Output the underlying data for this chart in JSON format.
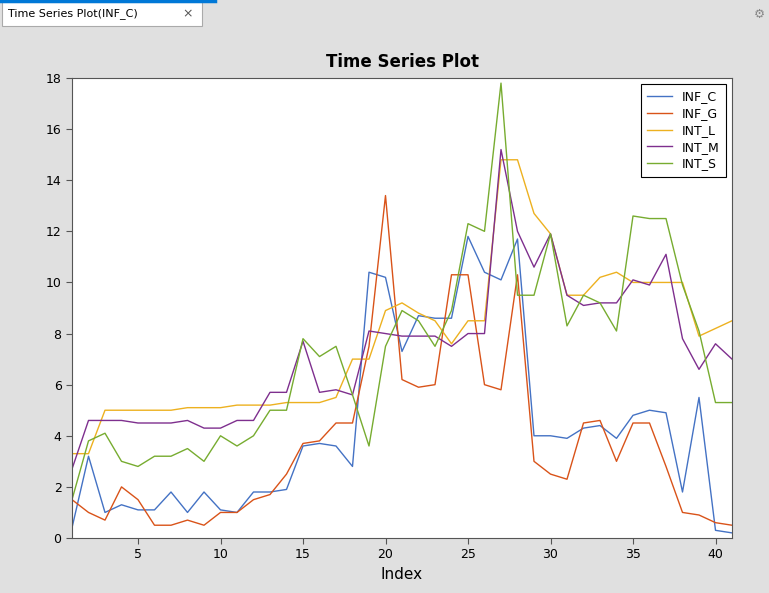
{
  "title": "Time Series Plot",
  "xlabel": "Index",
  "ylabel": "",
  "xlim": [
    1,
    41
  ],
  "ylim": [
    0,
    18
  ],
  "yticks": [
    0,
    2,
    4,
    6,
    8,
    10,
    12,
    14,
    16,
    18
  ],
  "xticks": [
    5,
    10,
    15,
    20,
    25,
    30,
    35,
    40
  ],
  "bg_color": "#e0e0e0",
  "plot_bg": "#ffffff",
  "tab_title": "Time Series Plot(INF_C)",
  "tab_bg": "#ffffff",
  "tab_bar_bg": "#d0d0d0",
  "tab_highlight": "#0078d7",
  "legend_labels": [
    "INF_C",
    "INF_G",
    "INT_L",
    "INT_M",
    "INT_S"
  ],
  "line_colors": [
    "#4472c4",
    "#d95319",
    "#edb120",
    "#7e2f8e",
    "#77ac30"
  ],
  "INF_C": [
    0.4,
    3.2,
    1.0,
    1.3,
    1.1,
    1.1,
    1.8,
    1.0,
    1.8,
    1.1,
    1.0,
    1.8,
    1.8,
    1.9,
    3.6,
    3.7,
    3.6,
    2.8,
    10.4,
    10.2,
    7.3,
    8.7,
    8.6,
    8.6,
    11.8,
    10.4,
    10.1,
    11.7,
    4.0,
    4.0,
    3.9,
    4.3,
    4.4,
    3.9,
    4.8,
    5.0,
    4.9,
    1.8,
    5.5,
    0.3,
    0.2
  ],
  "INF_G": [
    1.5,
    1.0,
    0.7,
    2.0,
    1.5,
    0.5,
    0.5,
    0.7,
    0.5,
    1.0,
    1.0,
    1.5,
    1.7,
    2.5,
    3.7,
    3.8,
    4.5,
    4.5,
    7.5,
    13.4,
    6.2,
    5.9,
    6.0,
    10.3,
    10.3,
    6.0,
    5.8,
    10.3,
    3.0,
    2.5,
    2.3,
    4.5,
    4.6,
    3.0,
    4.5,
    4.5,
    2.8,
    1.0,
    0.9,
    0.6,
    0.5
  ],
  "INT_L": [
    3.3,
    3.3,
    5.0,
    5.0,
    5.0,
    5.0,
    5.0,
    5.1,
    5.1,
    5.1,
    5.2,
    5.2,
    5.2,
    5.3,
    5.3,
    5.3,
    5.5,
    7.0,
    7.0,
    8.9,
    9.2,
    8.8,
    8.5,
    7.6,
    8.5,
    8.5,
    14.8,
    14.8,
    12.7,
    11.9,
    9.5,
    9.5,
    10.2,
    10.4,
    10.0,
    10.0,
    10.0,
    10.0,
    7.9,
    8.2,
    8.5
  ],
  "INT_M": [
    2.7,
    4.6,
    4.6,
    4.6,
    4.5,
    4.5,
    4.5,
    4.6,
    4.3,
    4.3,
    4.6,
    4.6,
    5.7,
    5.7,
    7.7,
    5.7,
    5.8,
    5.6,
    8.1,
    8.0,
    7.9,
    7.9,
    7.9,
    7.5,
    8.0,
    8.0,
    15.2,
    12.0,
    10.6,
    11.9,
    9.5,
    9.1,
    9.2,
    9.2,
    10.1,
    9.9,
    11.1,
    7.8,
    6.6,
    7.6,
    7.0
  ],
  "INT_S": [
    1.5,
    3.8,
    4.1,
    3.0,
    2.8,
    3.2,
    3.2,
    3.5,
    3.0,
    4.0,
    3.6,
    4.0,
    5.0,
    5.0,
    7.8,
    7.1,
    7.5,
    5.6,
    3.6,
    7.5,
    8.9,
    8.5,
    7.5,
    8.9,
    12.3,
    12.0,
    17.8,
    9.5,
    9.5,
    11.9,
    8.3,
    9.5,
    9.2,
    8.1,
    12.6,
    12.5,
    12.5,
    9.9,
    8.1,
    5.3,
    5.3
  ]
}
